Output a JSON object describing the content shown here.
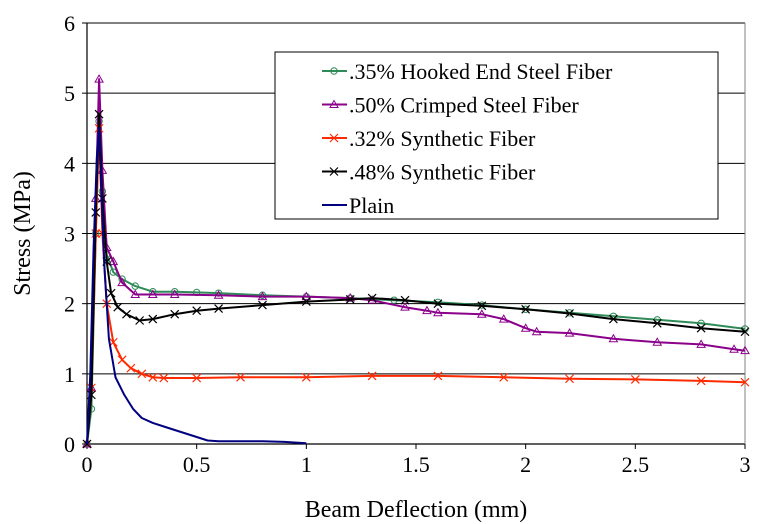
{
  "chart_data": {
    "type": "line",
    "title": "",
    "xlabel": "Beam Deflection (mm)",
    "ylabel": "Stress (MPa)",
    "xlim": [
      0,
      3
    ],
    "ylim": [
      0,
      6
    ],
    "xticks": [
      0,
      0.5,
      1,
      1.5,
      2,
      2.5,
      3
    ],
    "xtick_labels": [
      "0",
      "0.5",
      "1",
      "1.5",
      "2",
      "2.5",
      "3"
    ],
    "yticks": [
      0,
      1,
      2,
      3,
      4,
      5,
      6
    ],
    "ytick_labels": [
      "0",
      "1",
      "2",
      "3",
      "4",
      "5",
      "6"
    ],
    "grid": "horizontal",
    "legend_position": "top-right",
    "series": [
      {
        "name": ".35% Hooked End Steel Fiber",
        "color": "#2e8b57",
        "marker": "circle",
        "x": [
          0,
          0.02,
          0.04,
          0.055,
          0.07,
          0.09,
          0.12,
          0.16,
          0.22,
          0.3,
          0.4,
          0.5,
          0.6,
          0.8,
          1.0,
          1.2,
          1.4,
          1.6,
          1.8,
          2.0,
          2.2,
          2.4,
          2.6,
          2.8,
          3.0
        ],
        "y": [
          0,
          0.5,
          3.0,
          4.6,
          3.6,
          2.7,
          2.45,
          2.35,
          2.25,
          2.17,
          2.17,
          2.16,
          2.15,
          2.12,
          2.1,
          2.08,
          2.05,
          2.02,
          1.98,
          1.92,
          1.87,
          1.82,
          1.77,
          1.72,
          1.64
        ]
      },
      {
        "name": ".50% Crimped Steel Fiber",
        "color": "#8b008b",
        "marker": "triangle",
        "x": [
          0,
          0.02,
          0.04,
          0.055,
          0.07,
          0.09,
          0.12,
          0.16,
          0.22,
          0.3,
          0.4,
          0.6,
          0.8,
          1.0,
          1.2,
          1.3,
          1.45,
          1.55,
          1.6,
          1.8,
          1.9,
          2.0,
          2.05,
          2.2,
          2.4,
          2.6,
          2.8,
          2.95,
          3.0
        ],
        "y": [
          0,
          0.8,
          3.5,
          5.2,
          3.9,
          2.8,
          2.6,
          2.3,
          2.13,
          2.13,
          2.13,
          2.12,
          2.1,
          2.1,
          2.08,
          2.05,
          1.95,
          1.9,
          1.87,
          1.85,
          1.78,
          1.65,
          1.6,
          1.58,
          1.5,
          1.45,
          1.42,
          1.35,
          1.33
        ]
      },
      {
        "name": ".32% Synthetic Fiber",
        "color": "#ff2a00",
        "marker": "x",
        "x": [
          0,
          0.02,
          0.04,
          0.055,
          0.07,
          0.09,
          0.12,
          0.16,
          0.2,
          0.25,
          0.3,
          0.35,
          0.5,
          0.7,
          1.0,
          1.3,
          1.6,
          1.9,
          2.2,
          2.5,
          2.8,
          3.0
        ],
        "y": [
          0,
          0.8,
          3.0,
          4.5,
          3.0,
          2.0,
          1.45,
          1.2,
          1.08,
          1.0,
          0.95,
          0.94,
          0.94,
          0.95,
          0.95,
          0.97,
          0.97,
          0.95,
          0.93,
          0.92,
          0.9,
          0.88
        ]
      },
      {
        "name": ".48% Synthetic Fiber",
        "color": "#000000",
        "marker": "x",
        "x": [
          0,
          0.02,
          0.04,
          0.055,
          0.07,
          0.09,
          0.11,
          0.14,
          0.18,
          0.24,
          0.3,
          0.4,
          0.5,
          0.6,
          0.8,
          1.0,
          1.2,
          1.3,
          1.45,
          1.6,
          1.8,
          2.0,
          2.2,
          2.4,
          2.6,
          2.8,
          3.0
        ],
        "y": [
          0,
          0.7,
          3.3,
          4.7,
          3.5,
          2.6,
          2.15,
          1.95,
          1.85,
          1.76,
          1.78,
          1.85,
          1.9,
          1.93,
          1.98,
          2.03,
          2.06,
          2.08,
          2.05,
          2.0,
          1.97,
          1.92,
          1.86,
          1.78,
          1.72,
          1.65,
          1.6
        ]
      },
      {
        "name": "Plain",
        "color": "#000080",
        "marker": "none",
        "x": [
          0,
          0.015,
          0.03,
          0.045,
          0.055,
          0.065,
          0.08,
          0.1,
          0.13,
          0.17,
          0.21,
          0.25,
          0.3,
          0.35,
          0.4,
          0.45,
          0.5,
          0.55,
          0.6,
          0.7,
          0.8,
          0.9,
          1.0
        ],
        "y": [
          0,
          1.0,
          2.8,
          4.1,
          4.5,
          3.6,
          2.5,
          1.5,
          0.95,
          0.7,
          0.5,
          0.37,
          0.3,
          0.25,
          0.2,
          0.15,
          0.1,
          0.05,
          0.04,
          0.04,
          0.04,
          0.03,
          0.01
        ]
      }
    ]
  }
}
